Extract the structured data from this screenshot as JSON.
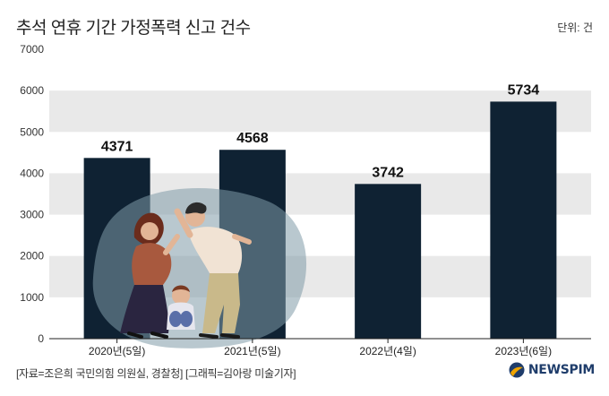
{
  "unit_label": "단위: 건",
  "source_text": "[자료=조은희 국민의힘 의원실, 경찰청] [그래픽=김아랑 미술기자]",
  "brand": "NEWSPIM",
  "colors": {
    "bar": "#0f2233",
    "band": "#e9e9e9",
    "accent": "#f0a500",
    "brand": "#1f3d6b"
  },
  "chart_data": {
    "type": "bar",
    "title": "추석 연휴 기간 가정폭력 신고 건수",
    "categories": [
      "2020년(5일)",
      "2021년(5일)",
      "2022년(4일)",
      "2023년(6일)"
    ],
    "values": [
      4371,
      4568,
      3742,
      5734
    ],
    "ylim": [
      0,
      7000
    ],
    "yticks": [
      0,
      1000,
      2000,
      3000,
      4000,
      5000,
      6000,
      7000
    ],
    "xlabel": "",
    "ylabel": ""
  }
}
